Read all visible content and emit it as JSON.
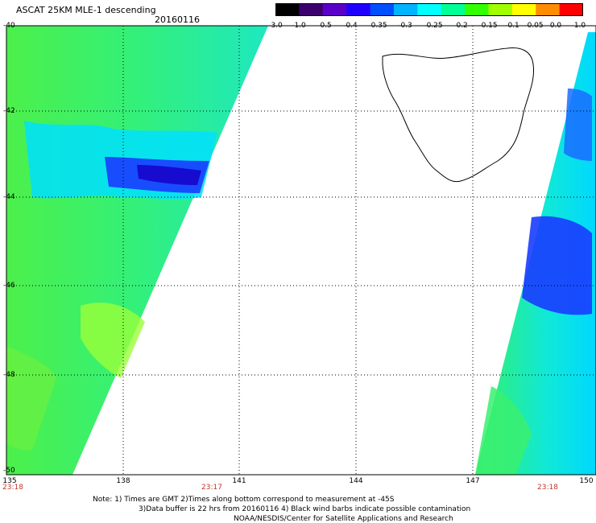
{
  "header": {
    "title": "ASCAT 25KM MLE-1 descending",
    "date": "20160116"
  },
  "colorbar": {
    "labels": [
      "-3.0",
      "-1.0",
      "-0.5",
      "-0.4",
      "-0.35",
      "-0.3",
      "-0.25",
      "-0.2",
      "-0.15",
      "-0.1",
      "-0.05",
      "0.0",
      "1.0"
    ],
    "colors": [
      "#000000",
      "#3b006e",
      "#5a00c8",
      "#1f00ff",
      "#0050ff",
      "#00b4ff",
      "#00ffff",
      "#00ff96",
      "#32ff00",
      "#a0ff00",
      "#ffff00",
      "#ff8c00",
      "#ff0000"
    ]
  },
  "map": {
    "lat_labels": [
      "-40",
      "-42",
      "-44",
      "-46",
      "-48",
      "-50"
    ],
    "lon_labels": [
      "135",
      "138",
      "141",
      "144",
      "147",
      "150"
    ],
    "time_labels": [
      "23:18",
      "23:17",
      "23:18"
    ]
  },
  "notes": {
    "line1": "Note: 1) Times are GMT 2)Times along bottom correspond to measurement at -45S",
    "line2": "3)Data buffer is 22 hrs from 20160116 4) Black wind barbs indicate possible contamination",
    "line3": "NOAA/NESDIS/Center for Satellite Applications and Research"
  }
}
